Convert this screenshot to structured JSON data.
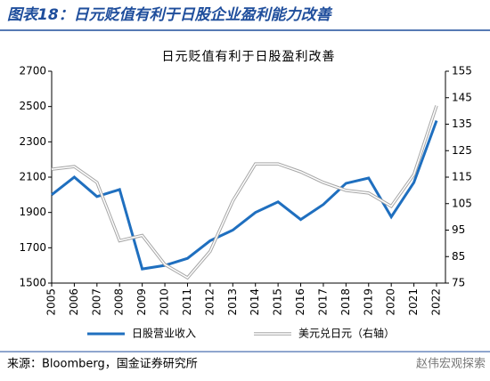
{
  "header": {
    "title": "图表18：日元贬值有利于日股企业盈利能力改善"
  },
  "chart_data": {
    "type": "line",
    "title": "日元贬值有利于日股盈利改善",
    "categories": [
      "2005",
      "2006",
      "2007",
      "2008",
      "2009",
      "2010",
      "2011",
      "2012",
      "2013",
      "2014",
      "2015",
      "2016",
      "2017",
      "2018",
      "2019",
      "2020",
      "2021",
      "2022"
    ],
    "series": [
      {
        "name": "日股营业收入",
        "color": "#1f6fbf",
        "values": [
          2000,
          2100,
          1990,
          2030,
          1580,
          1600,
          1640,
          1740,
          1800,
          1900,
          1960,
          1860,
          1945,
          2065,
          2095,
          1875,
          2070,
          2420
        ]
      },
      {
        "name": "美元兑日元（右轴）",
        "color": "#a6a6a6",
        "axis": "y2",
        "values": [
          118,
          119,
          113,
          91,
          93,
          82,
          77,
          87,
          106,
          120,
          120,
          117,
          113,
          110,
          109,
          104,
          116,
          142
        ]
      }
    ],
    "ylim": [
      1500,
      2700
    ],
    "yticks": [
      1500,
      1700,
      1900,
      2100,
      2300,
      2500,
      2700
    ],
    "y2lim": [
      75,
      155
    ],
    "y2ticks": [
      75,
      85,
      95,
      105,
      115,
      125,
      135,
      145,
      155
    ],
    "legend": "bottom"
  },
  "footer": {
    "source": "来源：Bloomberg，国金证券研究所",
    "watermark": "赵伟宏观探索"
  }
}
